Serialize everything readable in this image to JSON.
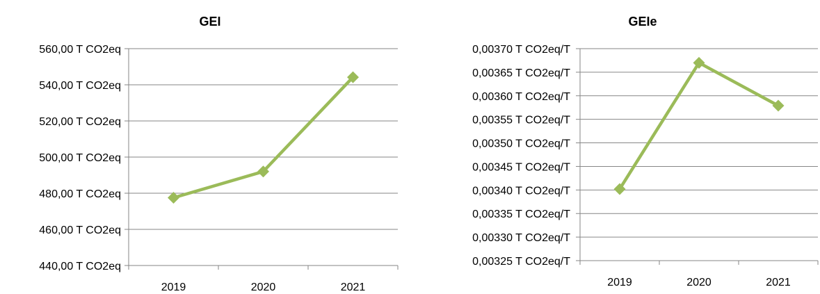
{
  "chart_data": [
    {
      "type": "line",
      "title": "GEI",
      "xlabel": "",
      "ylabel": "",
      "categories": [
        "2019",
        "2020",
        "2021"
      ],
      "series": [
        {
          "values": [
            477.5,
            492,
            544.2
          ],
          "color": "#9BBB59"
        }
      ],
      "ylim": [
        440,
        560
      ],
      "y_ticks": [
        "560,00 T CO2eq",
        "540,00 T CO2eq",
        "520,00 T CO2eq",
        "500,00 T CO2eq",
        "480,00 T CO2eq",
        "460,00 T CO2eq",
        "440,00 T CO2eq"
      ],
      "grid": true,
      "legend": "none"
    },
    {
      "type": "line",
      "title": "GEIe",
      "xlabel": "",
      "ylabel": "",
      "categories": [
        "2019",
        "2020",
        "2021"
      ],
      "series": [
        {
          "values": [
            0.003402,
            0.00367,
            0.003579
          ],
          "color": "#9BBB59"
        }
      ],
      "ylim": [
        0.00325,
        0.0037
      ],
      "y_ticks": [
        "0,00370 T CO2eq/T",
        "0,00365 T CO2eq/T",
        "0,00360 T CO2eq/T",
        "0,00355 T CO2eq/T",
        "0,00350 T CO2eq/T",
        "0,00345 T CO2eq/T",
        "0,00340 T CO2eq/T",
        "0,00335 T CO2eq/T",
        "0,00330 T CO2eq/T",
        "0,00325 T CO2eq/T"
      ],
      "grid": true,
      "legend": "none"
    }
  ]
}
